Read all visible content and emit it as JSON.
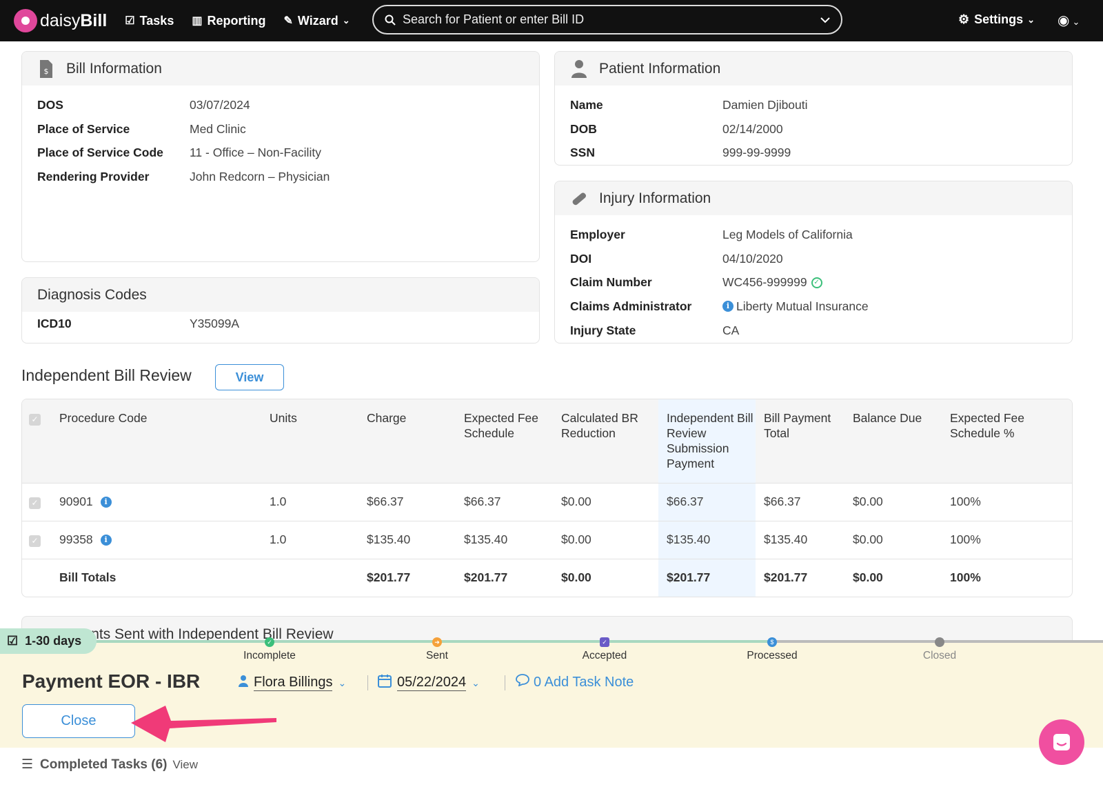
{
  "nav": {
    "logo_prefix": "daisy",
    "logo_suffix": "Bill",
    "tasks": "Tasks",
    "reporting": "Reporting",
    "wizard": "Wizard",
    "search_placeholder": "Search for Patient or enter Bill ID",
    "settings": "Settings"
  },
  "bill_info": {
    "title": "Bill Information",
    "rows": [
      {
        "label": "DOS",
        "value": "03/07/2024"
      },
      {
        "label": "Place of Service",
        "value": "Med Clinic"
      },
      {
        "label": "Place of Service Code",
        "value": "11 - Office – Non-Facility"
      },
      {
        "label": "Rendering Provider",
        "value": "John Redcorn – Physician"
      }
    ]
  },
  "patient_info": {
    "title": "Patient Information",
    "rows": [
      {
        "label": "Name",
        "value": "Damien Djibouti"
      },
      {
        "label": "DOB",
        "value": "02/14/2000"
      },
      {
        "label": "SSN",
        "value": "999-99-9999"
      }
    ]
  },
  "injury_info": {
    "title": "Injury Information",
    "rows": [
      {
        "label": "Employer",
        "value": "Leg Models of California"
      },
      {
        "label": "DOI",
        "value": "04/10/2020"
      },
      {
        "label": "Claim Number",
        "value": "WC456-999999"
      },
      {
        "label": "Claims Administrator",
        "value": "Liberty Mutual Insurance"
      },
      {
        "label": "Injury State",
        "value": "CA"
      }
    ]
  },
  "diagnosis": {
    "title": "Diagnosis Codes",
    "rows": [
      {
        "label": "ICD10",
        "value": "Y35099A"
      }
    ]
  },
  "ibr": {
    "title": "Independent Bill Review",
    "view_label": "View",
    "columns": [
      "Procedure Code",
      "Units",
      "Charge",
      "Expected Fee Schedule",
      "Calculated BR Reduction",
      "Independent Bill Review Submission Payment",
      "Bill Payment Total",
      "Balance Due",
      "Expected Fee Schedule %"
    ],
    "rows": [
      {
        "code": "90901",
        "units": "1.0",
        "charge": "$66.37",
        "efs": "$66.37",
        "br": "$0.00",
        "ibr": "$66.37",
        "bpt": "$66.37",
        "bal": "$0.00",
        "pct": "100%"
      },
      {
        "code": "99358",
        "units": "1.0",
        "charge": "$135.40",
        "efs": "$135.40",
        "br": "$0.00",
        "ibr": "$135.40",
        "bpt": "$135.40",
        "bal": "$0.00",
        "pct": "100%"
      }
    ],
    "totals": {
      "label": "Bill Totals",
      "charge": "$201.77",
      "efs": "$201.77",
      "br": "$0.00",
      "ibr": "$201.77",
      "bpt": "$201.77",
      "bal": "$0.00",
      "pct": "100%"
    }
  },
  "docs_panel": {
    "title": "Documents Sent with Independent Bill Review"
  },
  "task": {
    "days_badge": "1-30 days",
    "steps": [
      "Incomplete",
      "Sent",
      "Accepted",
      "Processed",
      "Closed"
    ],
    "title": "Payment EOR - IBR",
    "assignee": "Flora Billings",
    "due_date": "05/22/2024",
    "note_label": "0 Add Task Note",
    "close_label": "Close"
  },
  "completed": {
    "label": "Completed Tasks (6)",
    "view": "View"
  },
  "colors": {
    "accent": "#3b8fd8",
    "arrow": "#f03a78",
    "task_bg": "#fbf6df",
    "badge": "#bfe6d2"
  }
}
